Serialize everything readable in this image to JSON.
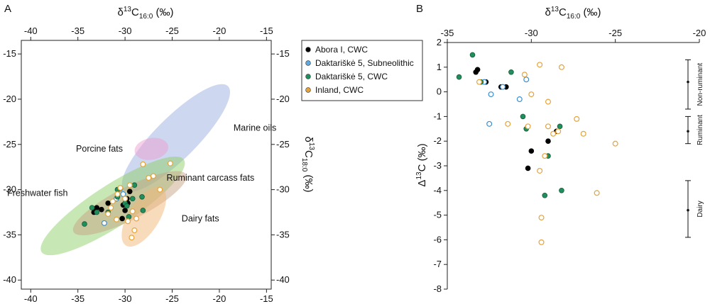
{
  "colors": {
    "Abora I, CWC": "#000000",
    "Daktariškė 5, Subneolithic": "#3b8fd0",
    "Daktariškė 5, CWC": "#1f8f5c",
    "Inland, CWC": "#e6a33a",
    "Marine oils": "#9bb0e0",
    "Porcine fats": "#ee9fd4",
    "Freshwater fish": "#8fd06a",
    "Ruminant carcass fats": "#c7a383",
    "Dairy fats": "#f0b878"
  },
  "chart_data": [
    {
      "panel_letter": "A",
      "type": "scatter",
      "xlabel_main": "δ",
      "xlabel_sup": "13",
      "xlabel_mid": "C",
      "xlabel_sub": "16:0",
      "xlabel_unit": " (‰)",
      "ylabel_main": "δ",
      "ylabel_sup": "13",
      "ylabel_mid": "C",
      "ylabel_sub": "18:0",
      "ylabel_unit": " (‰)",
      "xlim": [
        -41,
        -14.5
      ],
      "ylim": [
        -41,
        -13.5
      ],
      "xticks": [
        -40,
        -35,
        -30,
        -25,
        -20,
        -15
      ],
      "yticks": [
        -40,
        -35,
        -30,
        -25,
        -20,
        -15
      ],
      "grid": false,
      "regions": [
        {
          "name": "Marine oils",
          "cx": -24.6,
          "cy": -24.3,
          "rx": 7.8,
          "ry": 2.3,
          "angle_deg": 45,
          "label_x": -18.5,
          "label_y": -23.5
        },
        {
          "name": "Porcine fats",
          "cx": -27.2,
          "cy": -25.5,
          "rx": 1.8,
          "ry": 1.2,
          "angle_deg": 10,
          "label_x": -35.2,
          "label_y": -25.8
        },
        {
          "name": "Freshwater fish",
          "cx": -31.3,
          "cy": -31.8,
          "rx": 9.0,
          "ry": 2.3,
          "angle_deg": 33,
          "label_x": -42.5,
          "label_y": -30.7
        },
        {
          "name": "Ruminant carcass fats",
          "cx": -29.5,
          "cy": -31.5,
          "rx": 6.7,
          "ry": 1.8,
          "angle_deg": 27,
          "label_x": -25.6,
          "label_y": -29.0
        },
        {
          "name": "Dairy fats",
          "cx": -28.0,
          "cy": -33.0,
          "rx": 3.6,
          "ry": 1.7,
          "angle_deg": 58,
          "label_x": -24.0,
          "label_y": -33.5
        }
      ],
      "series": [
        {
          "name": "Abora I, CWC",
          "filled": true,
          "points": [
            [
              -33.2,
              -32.2
            ],
            [
              -33.3,
              -32.5
            ],
            [
              -33.0,
              -32.0
            ],
            [
              -32.5,
              -32.2
            ],
            [
              -31.8,
              -31.5
            ],
            [
              -29.5,
              -30.2
            ],
            [
              -29.8,
              -31.0
            ],
            [
              -29.7,
              -31.5
            ],
            [
              -30.2,
              -31.7
            ],
            [
              -30.0,
              -32.3
            ],
            [
              -30.3,
              -33.2
            ]
          ]
        },
        {
          "name": "Daktariškė 5, Subneolithic",
          "filled": false,
          "points": [
            [
              -30.5,
              -29.9
            ],
            [
              -30.2,
              -30.5
            ],
            [
              -30.9,
              -31.0
            ],
            [
              -32.2,
              -33.7
            ]
          ]
        },
        {
          "name": "Daktariškė 5, CWC",
          "filled": true,
          "points": [
            [
              -34.3,
              -33.8
            ],
            [
              -33.5,
              -32.0
            ],
            [
              -33.0,
              -32.5
            ],
            [
              -31.8,
              -32.5
            ],
            [
              -30.8,
              -30.0
            ],
            [
              -30.8,
              -30.8
            ],
            [
              -30.0,
              -31.5
            ],
            [
              -29.8,
              -31.8
            ],
            [
              -29.6,
              -33.0
            ],
            [
              -29.2,
              -31.0
            ],
            [
              -29.0,
              -29.5
            ],
            [
              -28.2,
              -30.8
            ],
            [
              -28.1,
              -32.3
            ]
          ]
        },
        {
          "name": "Inland, CWC",
          "filled": false,
          "points": [
            [
              -28.1,
              -27.2
            ],
            [
              -27.5,
              -28.7
            ],
            [
              -27.0,
              -28.5
            ],
            [
              -26.3,
              -30.0
            ],
            [
              -25.2,
              -27.1
            ],
            [
              -29.5,
              -29.5
            ],
            [
              -30.5,
              -29.8
            ],
            [
              -30.8,
              -30.5
            ],
            [
              -31.3,
              -31.3
            ],
            [
              -31.5,
              -32.0
            ],
            [
              -31.8,
              -32.7
            ],
            [
              -30.0,
              -31.0
            ],
            [
              -29.2,
              -32.4
            ],
            [
              -29.7,
              -33.5
            ],
            [
              -28.8,
              -33.2
            ],
            [
              -29.0,
              -34.5
            ],
            [
              -29.3,
              -35.3
            ],
            [
              -30.9,
              -33.3
            ]
          ]
        }
      ],
      "legend": [
        "Abora I, CWC",
        "Daktariškė 5, Subneolithic",
        "Daktariškė 5, CWC",
        "Inland, CWC"
      ]
    },
    {
      "panel_letter": "B",
      "type": "scatter",
      "xlabel_main": "δ",
      "xlabel_sup": "13",
      "xlabel_mid": "C",
      "xlabel_sub": "16:0",
      "xlabel_unit": " (‰)",
      "ylabel_main": "Δ",
      "ylabel_sup": "13",
      "ylabel_mid": "C (‰)",
      "xlim": [
        -35,
        -20
      ],
      "ylim": [
        -8,
        2
      ],
      "xticks": [
        -35,
        -30,
        -25,
        -20
      ],
      "yticks": [
        2,
        1,
        0,
        -1,
        -2,
        -3,
        -4,
        -5,
        -6,
        -7,
        -8
      ],
      "grid": false,
      "ranges": [
        {
          "label": "Non-ruminant",
          "top": 1.3,
          "bottom": -0.7,
          "mean": 0.4
        },
        {
          "label": "Ruminant",
          "top": -1.0,
          "bottom": -2.1,
          "mean": -1.6
        },
        {
          "label": "Dairy",
          "top": -3.6,
          "bottom": -5.9,
          "mean": -4.8
        }
      ],
      "series": [
        {
          "name": "Abora I, CWC",
          "filled": true,
          "points": [
            [
              -33.2,
              0.9
            ],
            [
              -33.3,
              0.8
            ],
            [
              -32.7,
              0.4
            ],
            [
              -31.8,
              0.2
            ],
            [
              -31.5,
              0.2
            ],
            [
              -30.0,
              -2.4
            ],
            [
              -30.2,
              -3.1
            ],
            [
              -29.0,
              -2.0
            ],
            [
              -28.5,
              -1.6
            ]
          ]
        },
        {
          "name": "Daktariškė 5, Subneolithic",
          "filled": false,
          "points": [
            [
              -32.8,
              0.4
            ],
            [
              -31.7,
              0.2
            ],
            [
              -30.7,
              -0.3
            ],
            [
              -30.3,
              0.5
            ],
            [
              -32.4,
              -0.1
            ],
            [
              -32.5,
              -1.3
            ]
          ]
        },
        {
          "name": "Daktariškė 5, CWC",
          "filled": true,
          "points": [
            [
              -34.3,
              0.6
            ],
            [
              -33.5,
              1.5
            ],
            [
              -33.0,
              0.4
            ],
            [
              -31.2,
              0.8
            ],
            [
              -30.5,
              -1.0
            ],
            [
              -30.3,
              -1.5
            ],
            [
              -29.0,
              -2.6
            ],
            [
              -29.2,
              -4.2
            ],
            [
              -28.3,
              -1.4
            ],
            [
              -28.2,
              -4.0
            ]
          ]
        },
        {
          "name": "Inland, CWC",
          "filled": false,
          "points": [
            [
              -33.1,
              0.4
            ],
            [
              -31.4,
              -1.3
            ],
            [
              -30.4,
              0.7
            ],
            [
              -30.0,
              -0.1
            ],
            [
              -29.5,
              1.1
            ],
            [
              -29.0,
              -0.4
            ],
            [
              -28.2,
              1.0
            ],
            [
              -30.2,
              -1.4
            ],
            [
              -29.0,
              -1.4
            ],
            [
              -28.7,
              -1.7
            ],
            [
              -28.4,
              -1.6
            ],
            [
              -27.3,
              -1.1
            ],
            [
              -26.9,
              -1.7
            ],
            [
              -25.0,
              -2.1
            ],
            [
              -26.1,
              -4.1
            ],
            [
              -29.2,
              -2.6
            ],
            [
              -29.5,
              -3.2
            ],
            [
              -29.4,
              -5.1
            ],
            [
              -29.4,
              -6.1
            ]
          ]
        }
      ]
    }
  ]
}
